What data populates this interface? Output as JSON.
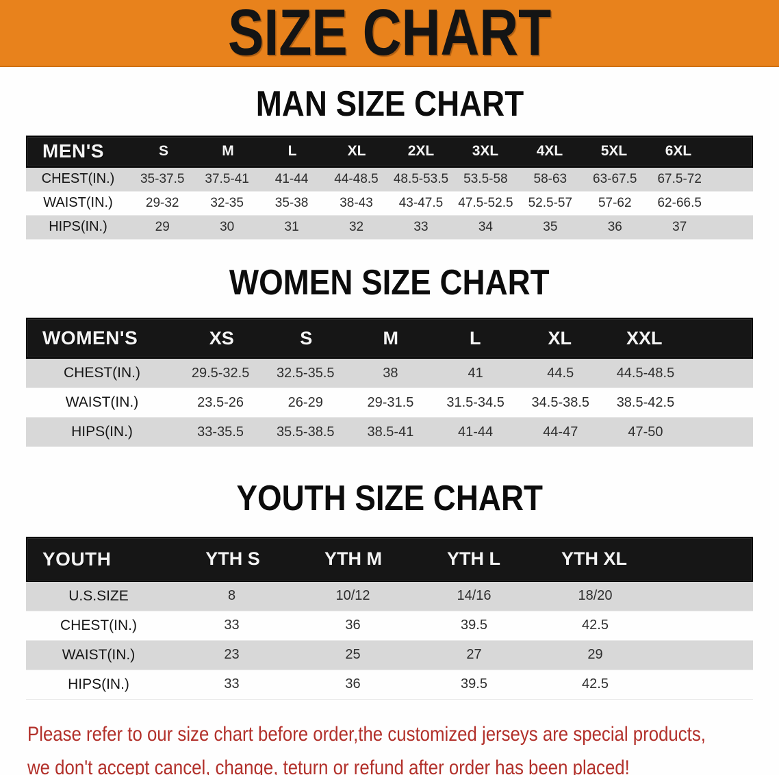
{
  "banner": {
    "title": "SIZE CHART"
  },
  "colors": {
    "banner_bg": "#e8821c",
    "table_header_bg": "#161616",
    "row_alt_bg": "#d8d8d8",
    "note_red": "#b2302a"
  },
  "sections": [
    {
      "heading": "MAN SIZE CHART",
      "header_label": "MEN'S",
      "columns": [
        "S",
        "M",
        "L",
        "XL",
        "2XL",
        "3XL",
        "4XL",
        "5XL",
        "6XL"
      ],
      "rows": [
        {
          "label": "CHEST(IN.)",
          "values": [
            "35-37.5",
            "37.5-41",
            "41-44",
            "44-48.5",
            "48.5-53.5",
            "53.5-58",
            "58-63",
            "63-67.5",
            "67.5-72"
          ]
        },
        {
          "label": "WAIST(IN.)",
          "values": [
            "29-32",
            "32-35",
            "35-38",
            "38-43",
            "43-47.5",
            "47.5-52.5",
            "52.5-57",
            "57-62",
            "62-66.5"
          ]
        },
        {
          "label": "HIPS(IN.)",
          "values": [
            "29",
            "30",
            "31",
            "32",
            "33",
            "34",
            "35",
            "36",
            "37"
          ]
        }
      ]
    },
    {
      "heading": "WOMEN SIZE CHART",
      "header_label": "WOMEN'S",
      "columns": [
        "XS",
        "S",
        "M",
        "L",
        "XL",
        "XXL"
      ],
      "rows": [
        {
          "label": "CHEST(IN.)",
          "values": [
            "29.5-32.5",
            "32.5-35.5",
            "38",
            "41",
            "44.5",
            "44.5-48.5"
          ]
        },
        {
          "label": "WAIST(IN.)",
          "values": [
            "23.5-26",
            "26-29",
            "29-31.5",
            "31.5-34.5",
            "34.5-38.5",
            "38.5-42.5"
          ]
        },
        {
          "label": "HIPS(IN.)",
          "values": [
            "33-35.5",
            "35.5-38.5",
            "38.5-41",
            "41-44",
            "44-47",
            "47-50"
          ]
        }
      ]
    },
    {
      "heading": "YOUTH SIZE CHART",
      "header_label": "YOUTH",
      "columns": [
        "YTH S",
        "YTH M",
        "YTH L",
        "YTH XL"
      ],
      "rows": [
        {
          "label": "U.S.SIZE",
          "values": [
            "8",
            "10/12",
            "14/16",
            "18/20"
          ]
        },
        {
          "label": "CHEST(IN.)",
          "values": [
            "33",
            "36",
            "39.5",
            "42.5"
          ]
        },
        {
          "label": "WAIST(IN.)",
          "values": [
            "23",
            "25",
            "27",
            "29"
          ]
        },
        {
          "label": "HIPS(IN.)",
          "values": [
            "33",
            "36",
            "39.5",
            "42.5"
          ]
        }
      ]
    }
  ],
  "footer": {
    "line1": "Please refer to our size chart before order,the customized jerseys are special products,",
    "line2": "we don't accept cancel, change, teturn or refund after order has been placed!"
  }
}
